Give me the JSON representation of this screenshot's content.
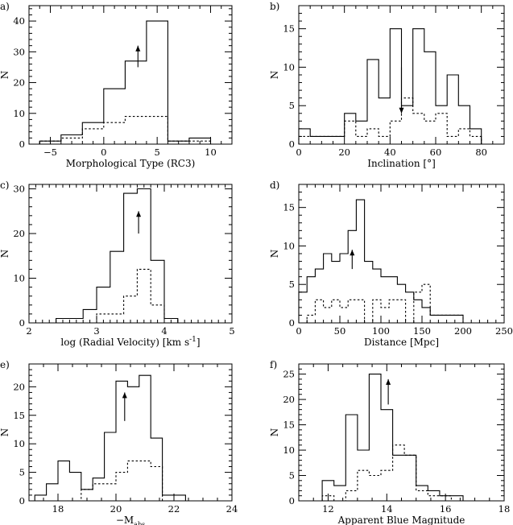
{
  "chart_data": [
    {
      "id": "a",
      "type": "histogram",
      "panel_label": "a)",
      "xlabel": "Morphological Type (RC3)",
      "ylabel": "N",
      "xlim": [
        -7,
        12
      ],
      "ylim": [
        0,
        45
      ],
      "xticks": [
        -5,
        0,
        5,
        10
      ],
      "yticks": [
        0,
        10,
        20,
        30,
        40
      ],
      "x_minor": 1,
      "y_minor": 2,
      "bins": [
        -6,
        -4,
        -2,
        0,
        2,
        4,
        6,
        8,
        10
      ],
      "series": [
        {
          "style": "solid",
          "values": [
            1,
            3,
            7,
            18,
            27,
            40,
            1,
            2
          ]
        },
        {
          "style": "dashed",
          "values": [
            1,
            2,
            5,
            7,
            9,
            9,
            1,
            1
          ]
        }
      ],
      "arrow": {
        "x": 3.2,
        "y_from": 25,
        "y_to": 32,
        "direction": "up"
      }
    },
    {
      "id": "b",
      "type": "histogram",
      "panel_label": "b)",
      "xlabel": "Inclination [°]",
      "ylabel": "N",
      "xlim": [
        0,
        90
      ],
      "ylim": [
        0,
        18
      ],
      "xticks": [
        0,
        20,
        40,
        60,
        80
      ],
      "yticks": [
        0,
        5,
        10,
        15
      ],
      "x_minor": 5,
      "y_minor": 1,
      "bins": [
        0,
        5,
        10,
        15,
        20,
        25,
        30,
        35,
        40,
        45,
        50,
        55,
        60,
        65,
        70,
        75,
        80
      ],
      "series": [
        {
          "style": "solid",
          "values": [
            2,
            1,
            1,
            1,
            4,
            3,
            11,
            6,
            15,
            5,
            15,
            12,
            5,
            9,
            5,
            2
          ]
        },
        {
          "style": "dashed",
          "values": [
            1,
            1,
            1,
            1,
            3,
            1,
            2,
            1,
            3,
            6,
            4,
            3,
            4,
            1,
            2,
            1
          ]
        }
      ],
      "arrow": {
        "x": 45,
        "y_from": 10,
        "y_to": 4,
        "direction": "down"
      }
    },
    {
      "id": "c",
      "type": "histogram",
      "panel_label": "c)",
      "xlabel": "log (Radial Velocity) [km s",
      "xlabel_sup": "-1",
      "xlabel_end": "]",
      "ylabel": "N",
      "xlim": [
        2,
        5
      ],
      "ylim": [
        0,
        31
      ],
      "xticks": [
        2,
        3,
        4,
        5
      ],
      "yticks": [
        0,
        10,
        20,
        30
      ],
      "x_minor": 0.1,
      "y_minor": 2,
      "bins": [
        2.4,
        2.6,
        2.8,
        3.0,
        3.2,
        3.4,
        3.6,
        3.8,
        4.0,
        4.2
      ],
      "series": [
        {
          "style": "solid",
          "values": [
            1,
            1,
            3,
            8,
            16,
            29,
            30,
            14,
            1
          ]
        },
        {
          "style": "dashed",
          "values": [
            0,
            0,
            0,
            2,
            2,
            6,
            12,
            4,
            1
          ]
        }
      ],
      "arrow": {
        "x": 3.62,
        "y_from": 20,
        "y_to": 25,
        "direction": "up"
      }
    },
    {
      "id": "d",
      "type": "histogram",
      "panel_label": "d)",
      "xlabel": "Distance [Mpc]",
      "ylabel": "N",
      "xlim": [
        0,
        250
      ],
      "ylim": [
        0,
        18
      ],
      "xticks": [
        0,
        50,
        100,
        150,
        200,
        250
      ],
      "yticks": [
        0,
        5,
        10,
        15
      ],
      "x_minor": 10,
      "y_minor": 1,
      "bins": [
        0,
        10,
        20,
        30,
        40,
        50,
        60,
        70,
        80,
        90,
        100,
        110,
        120,
        130,
        140,
        150,
        160,
        170,
        180,
        190,
        200
      ],
      "series": [
        {
          "style": "solid",
          "values": [
            4,
            6,
            7,
            9,
            8,
            9,
            12,
            16,
            8,
            7,
            6,
            6,
            5,
            4,
            3,
            2,
            1,
            1,
            1,
            1
          ]
        },
        {
          "style": "dashed",
          "values": [
            0,
            1,
            3,
            2,
            3,
            2,
            3,
            3,
            0,
            3,
            2,
            3,
            3,
            0,
            4,
            5,
            1,
            1,
            1,
            1
          ]
        }
      ],
      "arrow": {
        "x": 65,
        "y_from": 7,
        "y_to": 9.5,
        "direction": "up"
      }
    },
    {
      "id": "e",
      "type": "histogram",
      "panel_label": "e)",
      "xlabel": "−M",
      "xlabel_sub": "abs",
      "ylabel": "N",
      "xlim": [
        17,
        24
      ],
      "ylim": [
        0,
        24
      ],
      "xticks": [
        18,
        20,
        22,
        24
      ],
      "yticks": [
        0,
        5,
        10,
        15,
        20
      ],
      "x_minor": 0.5,
      "y_minor": 1,
      "bins": [
        17.2,
        17.6,
        18.0,
        18.4,
        18.8,
        19.2,
        19.6,
        20.0,
        20.4,
        20.8,
        21.2,
        21.6,
        22.0,
        22.4
      ],
      "series": [
        {
          "style": "solid",
          "values": [
            1,
            3,
            7,
            5,
            2,
            4,
            12,
            21,
            20,
            22,
            11,
            1,
            1
          ]
        },
        {
          "style": "dashed",
          "values": [
            0,
            0,
            0,
            0,
            2,
            3,
            3,
            5,
            7,
            7,
            6,
            0,
            0
          ]
        }
      ],
      "arrow": {
        "x": 20.3,
        "y_from": 14,
        "y_to": 19,
        "direction": "up"
      }
    },
    {
      "id": "f",
      "type": "histogram",
      "panel_label": "f)",
      "xlabel": "Apparent Blue Magnitude",
      "ylabel": "N",
      "xlim": [
        11,
        18
      ],
      "ylim": [
        0,
        27
      ],
      "xticks": [
        12,
        14,
        16,
        18
      ],
      "yticks": [
        0,
        5,
        10,
        15,
        20,
        25
      ],
      "x_minor": 0.5,
      "y_minor": 1,
      "bins": [
        11.8,
        12.2,
        12.6,
        13.0,
        13.4,
        13.8,
        14.2,
        14.6,
        15.0,
        15.4,
        15.8,
        16.2,
        16.6,
        17.0
      ],
      "series": [
        {
          "style": "solid",
          "values": [
            4,
            3,
            17,
            10,
            25,
            18,
            9,
            9,
            3,
            2,
            1,
            1,
            0
          ]
        },
        {
          "style": "dashed",
          "values": [
            1,
            0,
            2,
            6,
            5,
            6,
            11,
            9,
            2,
            1,
            1,
            0,
            0
          ]
        }
      ],
      "arrow": {
        "x": 14.05,
        "y_from": 19,
        "y_to": 24,
        "direction": "up"
      }
    }
  ]
}
